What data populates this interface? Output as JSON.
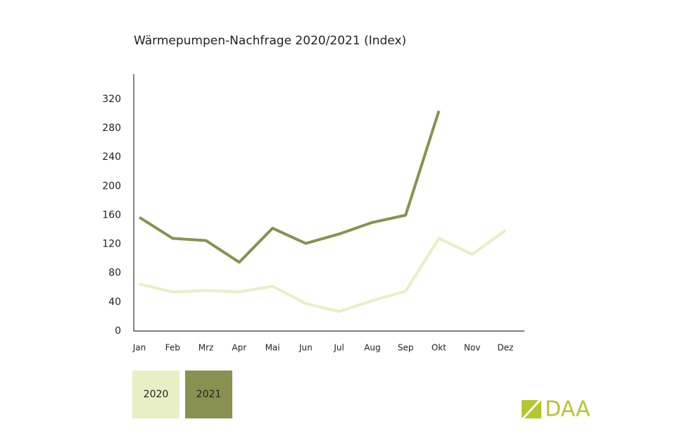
{
  "chart_data": {
    "type": "line",
    "title": "Wärmepumpen-Nachfrage 2020/2021 (Index)",
    "categories": [
      "Jan",
      "Feb",
      "Mrz",
      "Apr",
      "Mai",
      "Jun",
      "Jul",
      "Aug",
      "Sep",
      "Okt",
      "Nov",
      "Dez"
    ],
    "series": [
      {
        "name": "2020",
        "color": "#e8efc4",
        "values": [
          65,
          54,
          56,
          54,
          62,
          38,
          27,
          42,
          55,
          128,
          106,
          139
        ]
      },
      {
        "name": "2021",
        "color": "#8a9150",
        "values": [
          157,
          128,
          125,
          95,
          142,
          121,
          134,
          150,
          160,
          304,
          null,
          null
        ]
      }
    ],
    "ylim": [
      0,
      355
    ],
    "yticks": [
      0,
      40,
      80,
      120,
      160,
      200,
      240,
      280,
      320
    ],
    "grid": false,
    "legend": "bottom"
  },
  "logo": "DAA"
}
